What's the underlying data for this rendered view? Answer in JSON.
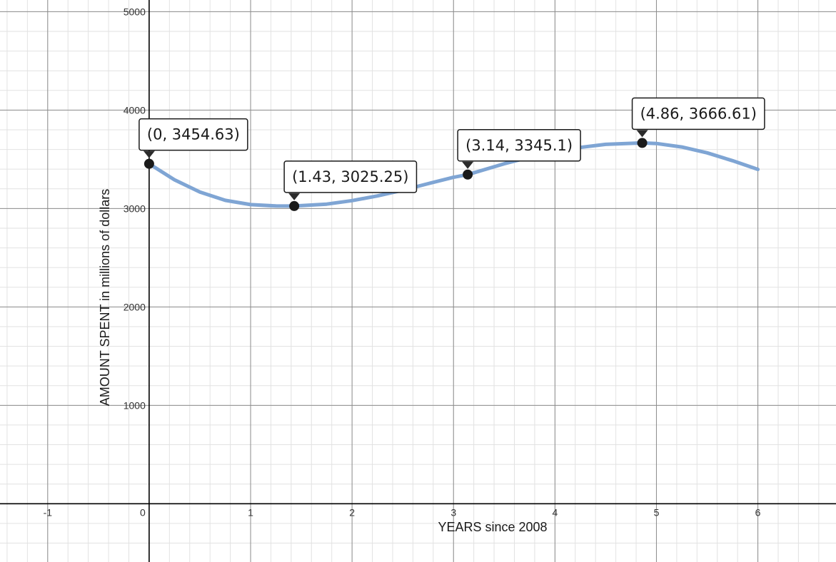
{
  "chart_data": {
    "type": "line",
    "title": "",
    "xlabel": "YEARS since 2008",
    "ylabel": "AMOUNT SPENT in millions of dollars",
    "xlim": [
      -1.47,
      6.77
    ],
    "ylim": [
      -592,
      5119
    ],
    "x_ticks": [
      -1,
      0,
      1,
      2,
      3,
      4,
      5,
      6
    ],
    "x_tick_labels": [
      "-1",
      "0",
      "1",
      "2",
      "3",
      "4",
      "5",
      "6"
    ],
    "y_ticks": [
      1000,
      2000,
      3000,
      4000,
      5000
    ],
    "y_tick_labels": [
      "1000",
      "2000",
      "3000",
      "4000",
      "5000"
    ],
    "grid": true,
    "minor_grid": {
      "x_step": 0.2,
      "y_step": 200
    },
    "series": [
      {
        "color": "#7fa5d4",
        "x": [
          0,
          0.25,
          0.5,
          0.75,
          1.0,
          1.25,
          1.43,
          1.75,
          2.0,
          2.25,
          2.5,
          2.75,
          3.0,
          3.14,
          3.5,
          3.75,
          4.0,
          4.25,
          4.5,
          4.86,
          5.0,
          5.25,
          5.5,
          5.75,
          6.0
        ],
        "y": [
          3454.63,
          3292,
          3168,
          3083,
          3040,
          3026,
          3025.25,
          3045,
          3080,
          3128,
          3186,
          3253,
          3317,
          3345.1,
          3455,
          3521,
          3576,
          3621,
          3652,
          3666.61,
          3661,
          3625,
          3566,
          3486,
          3398
        ]
      }
    ],
    "points": [
      {
        "x": 0,
        "y": 3454.63,
        "label": "(0, 3454.63)"
      },
      {
        "x": 1.43,
        "y": 3025.25,
        "label": "(1.43, 3025.25)"
      },
      {
        "x": 3.14,
        "y": 3345.1,
        "label": "(3.14, 3345.1)"
      },
      {
        "x": 4.86,
        "y": 3666.61,
        "label": "(4.86, 3666.61)"
      }
    ],
    "colors": {
      "curve": "#7fa5d4",
      "point": "#1a1a1a",
      "axis": "#000000",
      "major_grid": "#8c8c8c",
      "minor_grid": "#e2e2e2"
    }
  }
}
